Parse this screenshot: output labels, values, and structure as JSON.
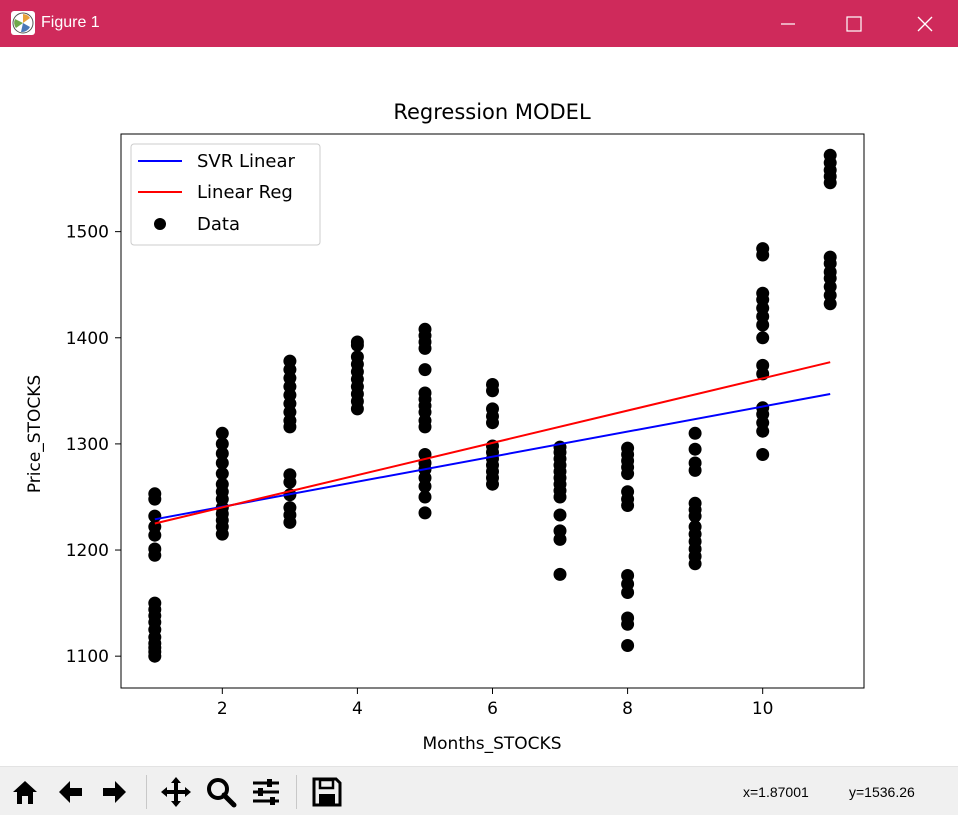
{
  "window": {
    "title": "Figure 1",
    "titlebar_color": "#cf2a5b"
  },
  "toolbar": {
    "buttons": [
      {
        "name": "home-icon",
        "label": "Home"
      },
      {
        "name": "back-arrow-icon",
        "label": "Back"
      },
      {
        "name": "forward-arrow-icon",
        "label": "Forward"
      },
      {
        "name": "pan-icon",
        "label": "Pan"
      },
      {
        "name": "zoom-icon",
        "label": "Zoom"
      },
      {
        "name": "configure-subplots-icon",
        "label": "Configure subplots"
      },
      {
        "name": "save-icon",
        "label": "Save"
      }
    ],
    "x_readout": "x=1.87001",
    "y_readout": "y=1536.26"
  },
  "chart_data": {
    "type": "scatter",
    "title": "Regression MODEL",
    "xlabel": "Months_STOCKS",
    "ylabel": "Price_STOCKS",
    "xlim": [
      0.5,
      11.5
    ],
    "ylim": [
      1070,
      1592
    ],
    "xticks": [
      2,
      4,
      6,
      8,
      10
    ],
    "yticks": [
      1100,
      1200,
      1300,
      1400,
      1500
    ],
    "legend_position": "upper-left",
    "lines": [
      {
        "name": "SVR Linear",
        "color": "#0000ff",
        "x": [
          1,
          11
        ],
        "y": [
          1229,
          1347
        ]
      },
      {
        "name": "Linear Reg",
        "color": "#ff0000",
        "x": [
          1,
          11
        ],
        "y": [
          1225,
          1377
        ]
      }
    ],
    "scatter": {
      "name": "Data",
      "color": "#000000",
      "points": [
        [
          1,
          1100
        ],
        [
          1,
          1104
        ],
        [
          1,
          1108
        ],
        [
          1,
          1112
        ],
        [
          1,
          1118
        ],
        [
          1,
          1125
        ],
        [
          1,
          1132
        ],
        [
          1,
          1138
        ],
        [
          1,
          1144
        ],
        [
          1,
          1150
        ],
        [
          1,
          1195
        ],
        [
          1,
          1201
        ],
        [
          1,
          1214
        ],
        [
          1,
          1222
        ],
        [
          1,
          1232
        ],
        [
          1,
          1248
        ],
        [
          1,
          1253
        ],
        [
          2,
          1215
        ],
        [
          2,
          1222
        ],
        [
          2,
          1228
        ],
        [
          2,
          1234
        ],
        [
          2,
          1240
        ],
        [
          2,
          1248
        ],
        [
          2,
          1255
        ],
        [
          2,
          1262
        ],
        [
          2,
          1272
        ],
        [
          2,
          1282
        ],
        [
          2,
          1291
        ],
        [
          2,
          1300
        ],
        [
          2,
          1310
        ],
        [
          3,
          1226
        ],
        [
          3,
          1233
        ],
        [
          3,
          1240
        ],
        [
          3,
          1252
        ],
        [
          3,
          1264
        ],
        [
          3,
          1271
        ],
        [
          3,
          1316
        ],
        [
          3,
          1322
        ],
        [
          3,
          1330
        ],
        [
          3,
          1338
        ],
        [
          3,
          1346
        ],
        [
          3,
          1354
        ],
        [
          3,
          1362
        ],
        [
          3,
          1370
        ],
        [
          3,
          1378
        ],
        [
          4,
          1333
        ],
        [
          4,
          1340
        ],
        [
          4,
          1347
        ],
        [
          4,
          1354
        ],
        [
          4,
          1361
        ],
        [
          4,
          1368
        ],
        [
          4,
          1375
        ],
        [
          4,
          1382
        ],
        [
          4,
          1393
        ],
        [
          4,
          1396
        ],
        [
          5,
          1235
        ],
        [
          5,
          1250
        ],
        [
          5,
          1260
        ],
        [
          5,
          1268
        ],
        [
          5,
          1276
        ],
        [
          5,
          1282
        ],
        [
          5,
          1290
        ],
        [
          5,
          1316
        ],
        [
          5,
          1322
        ],
        [
          5,
          1330
        ],
        [
          5,
          1336
        ],
        [
          5,
          1342
        ],
        [
          5,
          1348
        ],
        [
          5,
          1370
        ],
        [
          5,
          1390
        ],
        [
          5,
          1396
        ],
        [
          5,
          1402
        ],
        [
          5,
          1408
        ],
        [
          6,
          1262
        ],
        [
          6,
          1268
        ],
        [
          6,
          1274
        ],
        [
          6,
          1280
        ],
        [
          6,
          1286
        ],
        [
          6,
          1292
        ],
        [
          6,
          1298
        ],
        [
          6,
          1320
        ],
        [
          6,
          1326
        ],
        [
          6,
          1333
        ],
        [
          6,
          1350
        ],
        [
          6,
          1356
        ],
        [
          7,
          1177
        ],
        [
          7,
          1210
        ],
        [
          7,
          1218
        ],
        [
          7,
          1233
        ],
        [
          7,
          1250
        ],
        [
          7,
          1256
        ],
        [
          7,
          1262
        ],
        [
          7,
          1268
        ],
        [
          7,
          1274
        ],
        [
          7,
          1280
        ],
        [
          7,
          1286
        ],
        [
          7,
          1292
        ],
        [
          7,
          1297
        ],
        [
          8,
          1110
        ],
        [
          8,
          1130
        ],
        [
          8,
          1136
        ],
        [
          8,
          1160
        ],
        [
          8,
          1168
        ],
        [
          8,
          1176
        ],
        [
          8,
          1242
        ],
        [
          8,
          1248
        ],
        [
          8,
          1255
        ],
        [
          8,
          1272
        ],
        [
          8,
          1278
        ],
        [
          8,
          1284
        ],
        [
          8,
          1290
        ],
        [
          8,
          1296
        ],
        [
          9,
          1187
        ],
        [
          9,
          1194
        ],
        [
          9,
          1201
        ],
        [
          9,
          1208
        ],
        [
          9,
          1215
        ],
        [
          9,
          1222
        ],
        [
          9,
          1232
        ],
        [
          9,
          1238
        ],
        [
          9,
          1244
        ],
        [
          9,
          1275
        ],
        [
          9,
          1282
        ],
        [
          9,
          1295
        ],
        [
          9,
          1310
        ],
        [
          10,
          1290
        ],
        [
          10,
          1312
        ],
        [
          10,
          1320
        ],
        [
          10,
          1328
        ],
        [
          10,
          1334
        ],
        [
          10,
          1366
        ],
        [
          10,
          1374
        ],
        [
          10,
          1400
        ],
        [
          10,
          1412
        ],
        [
          10,
          1420
        ],
        [
          10,
          1428
        ],
        [
          10,
          1436
        ],
        [
          10,
          1442
        ],
        [
          10,
          1478
        ],
        [
          10,
          1484
        ],
        [
          11,
          1432
        ],
        [
          11,
          1440
        ],
        [
          11,
          1448
        ],
        [
          11,
          1456
        ],
        [
          11,
          1462
        ],
        [
          11,
          1470
        ],
        [
          11,
          1476
        ],
        [
          11,
          1546
        ],
        [
          11,
          1552
        ],
        [
          11,
          1558
        ],
        [
          11,
          1565
        ],
        [
          11,
          1572
        ]
      ]
    }
  }
}
